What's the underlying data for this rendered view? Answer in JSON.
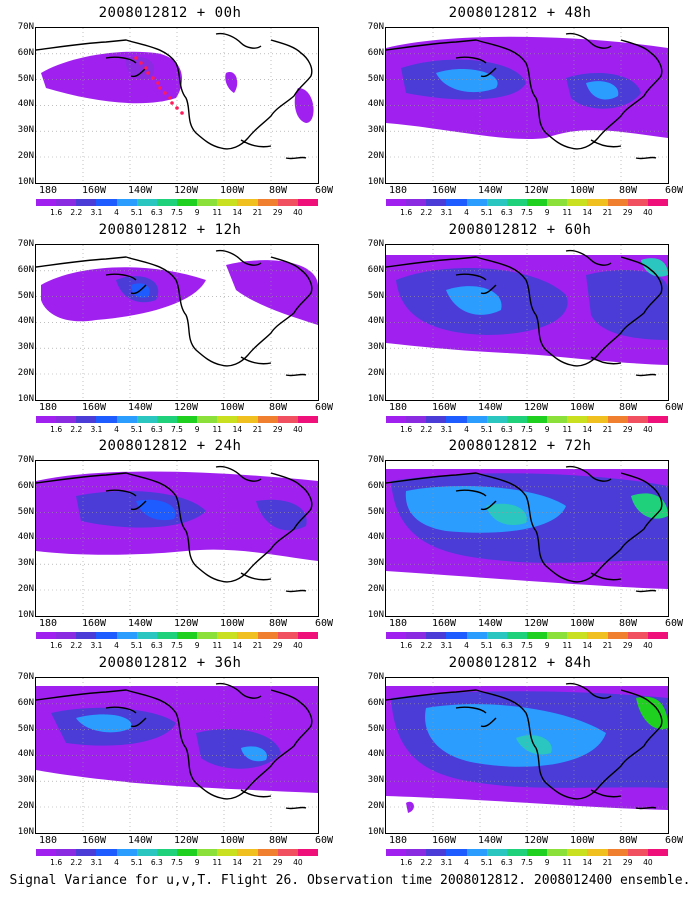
{
  "panels": [
    {
      "title": "2008012812 + 00h"
    },
    {
      "title": "2008012812 + 48h"
    },
    {
      "title": "2008012812 + 12h"
    },
    {
      "title": "2008012812 + 60h"
    },
    {
      "title": "2008012812 + 24h"
    },
    {
      "title": "2008012812 + 72h"
    },
    {
      "title": "2008012812 + 36h"
    },
    {
      "title": "2008012812 + 84h"
    }
  ],
  "y_labels": [
    "70N",
    "60N",
    "50N",
    "40N",
    "30N",
    "20N",
    "10N"
  ],
  "x_labels": [
    "180",
    "160W",
    "140W",
    "120W",
    "100W",
    "80W",
    "60W"
  ],
  "colorbar_labels": [
    "1.6",
    "2.2",
    "3.1",
    "4",
    "5.1",
    "6.3",
    "7.5",
    "9",
    "11",
    "14",
    "21",
    "29",
    "40"
  ],
  "colorbar_colors": [
    "#a020f0",
    "#8a2be2",
    "#4b3cd8",
    "#1e5cff",
    "#2a9dff",
    "#2bc6c0",
    "#1fd17a",
    "#20d020",
    "#8be03a",
    "#c8e020",
    "#f0c020",
    "#f08030",
    "#f05060",
    "#f0107a"
  ],
  "caption": "Signal Variance for u,v,T. Flight 26. Observation time 2008012812. 2008012400 ensemble."
}
